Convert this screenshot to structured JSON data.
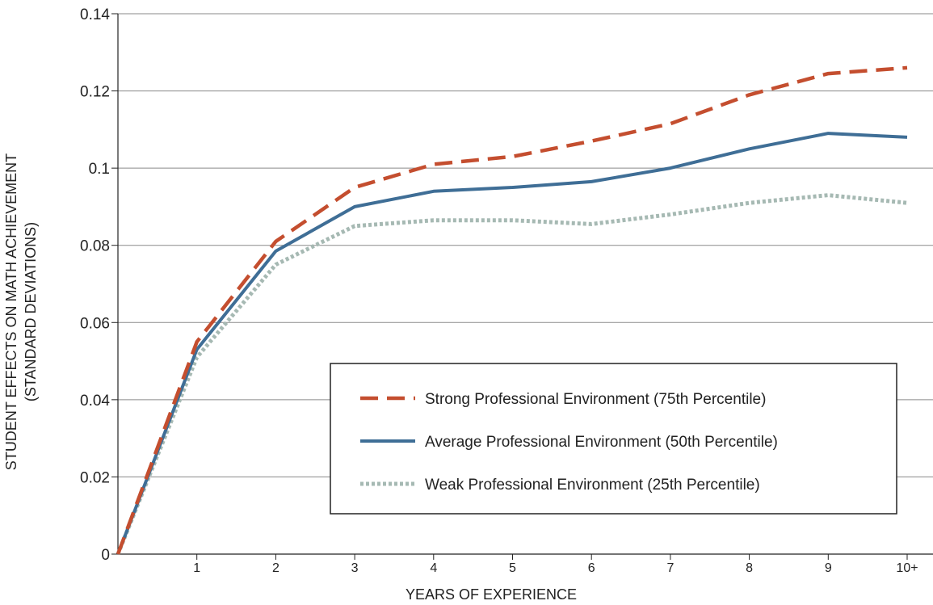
{
  "chart_data": {
    "type": "line",
    "xlabel": "YEARS OF EXPERIENCE",
    "ylabel_lines": [
      "STUDENT EFFECTS ON MATH ACHIEVEMENT",
      "(STANDARD DEVIATIONS)"
    ],
    "categories": [
      "0",
      "1",
      "2",
      "3",
      "4",
      "5",
      "6",
      "7",
      "8",
      "9",
      "10+"
    ],
    "x_tick_labels": [
      "1",
      "2",
      "3",
      "4",
      "5",
      "6",
      "7",
      "8",
      "9",
      "10+"
    ],
    "y_ticks": [
      0,
      0.02,
      0.04,
      0.06,
      0.08,
      0.1,
      0.12,
      0.14
    ],
    "y_tick_labels": [
      "0",
      "0.02",
      "0.04",
      "0.06",
      "0.08",
      "0.1",
      "0.12",
      "0.14"
    ],
    "ylim": [
      0,
      0.14
    ],
    "grid": "horizontal",
    "legend_position": "bottom-right",
    "series": [
      {
        "name": "Strong Professional Environment (75th Percentile)",
        "values": [
          0,
          0.055,
          0.081,
          0.095,
          0.101,
          0.103,
          0.107,
          0.1115,
          0.119,
          0.1245,
          0.126
        ],
        "color": "#c44e2f",
        "style": "dashed"
      },
      {
        "name": "Average Professional Environment (50th Percentile)",
        "values": [
          0,
          0.053,
          0.0785,
          0.09,
          0.094,
          0.095,
          0.0965,
          0.1,
          0.105,
          0.109,
          0.108
        ],
        "color": "#3f6e96",
        "style": "solid"
      },
      {
        "name": "Weak Professional Environment (25th Percentile)",
        "values": [
          0,
          0.051,
          0.075,
          0.085,
          0.0865,
          0.0865,
          0.0855,
          0.088,
          0.091,
          0.093,
          0.091
        ],
        "color": "#a6b9b3",
        "style": "dotted"
      }
    ]
  }
}
